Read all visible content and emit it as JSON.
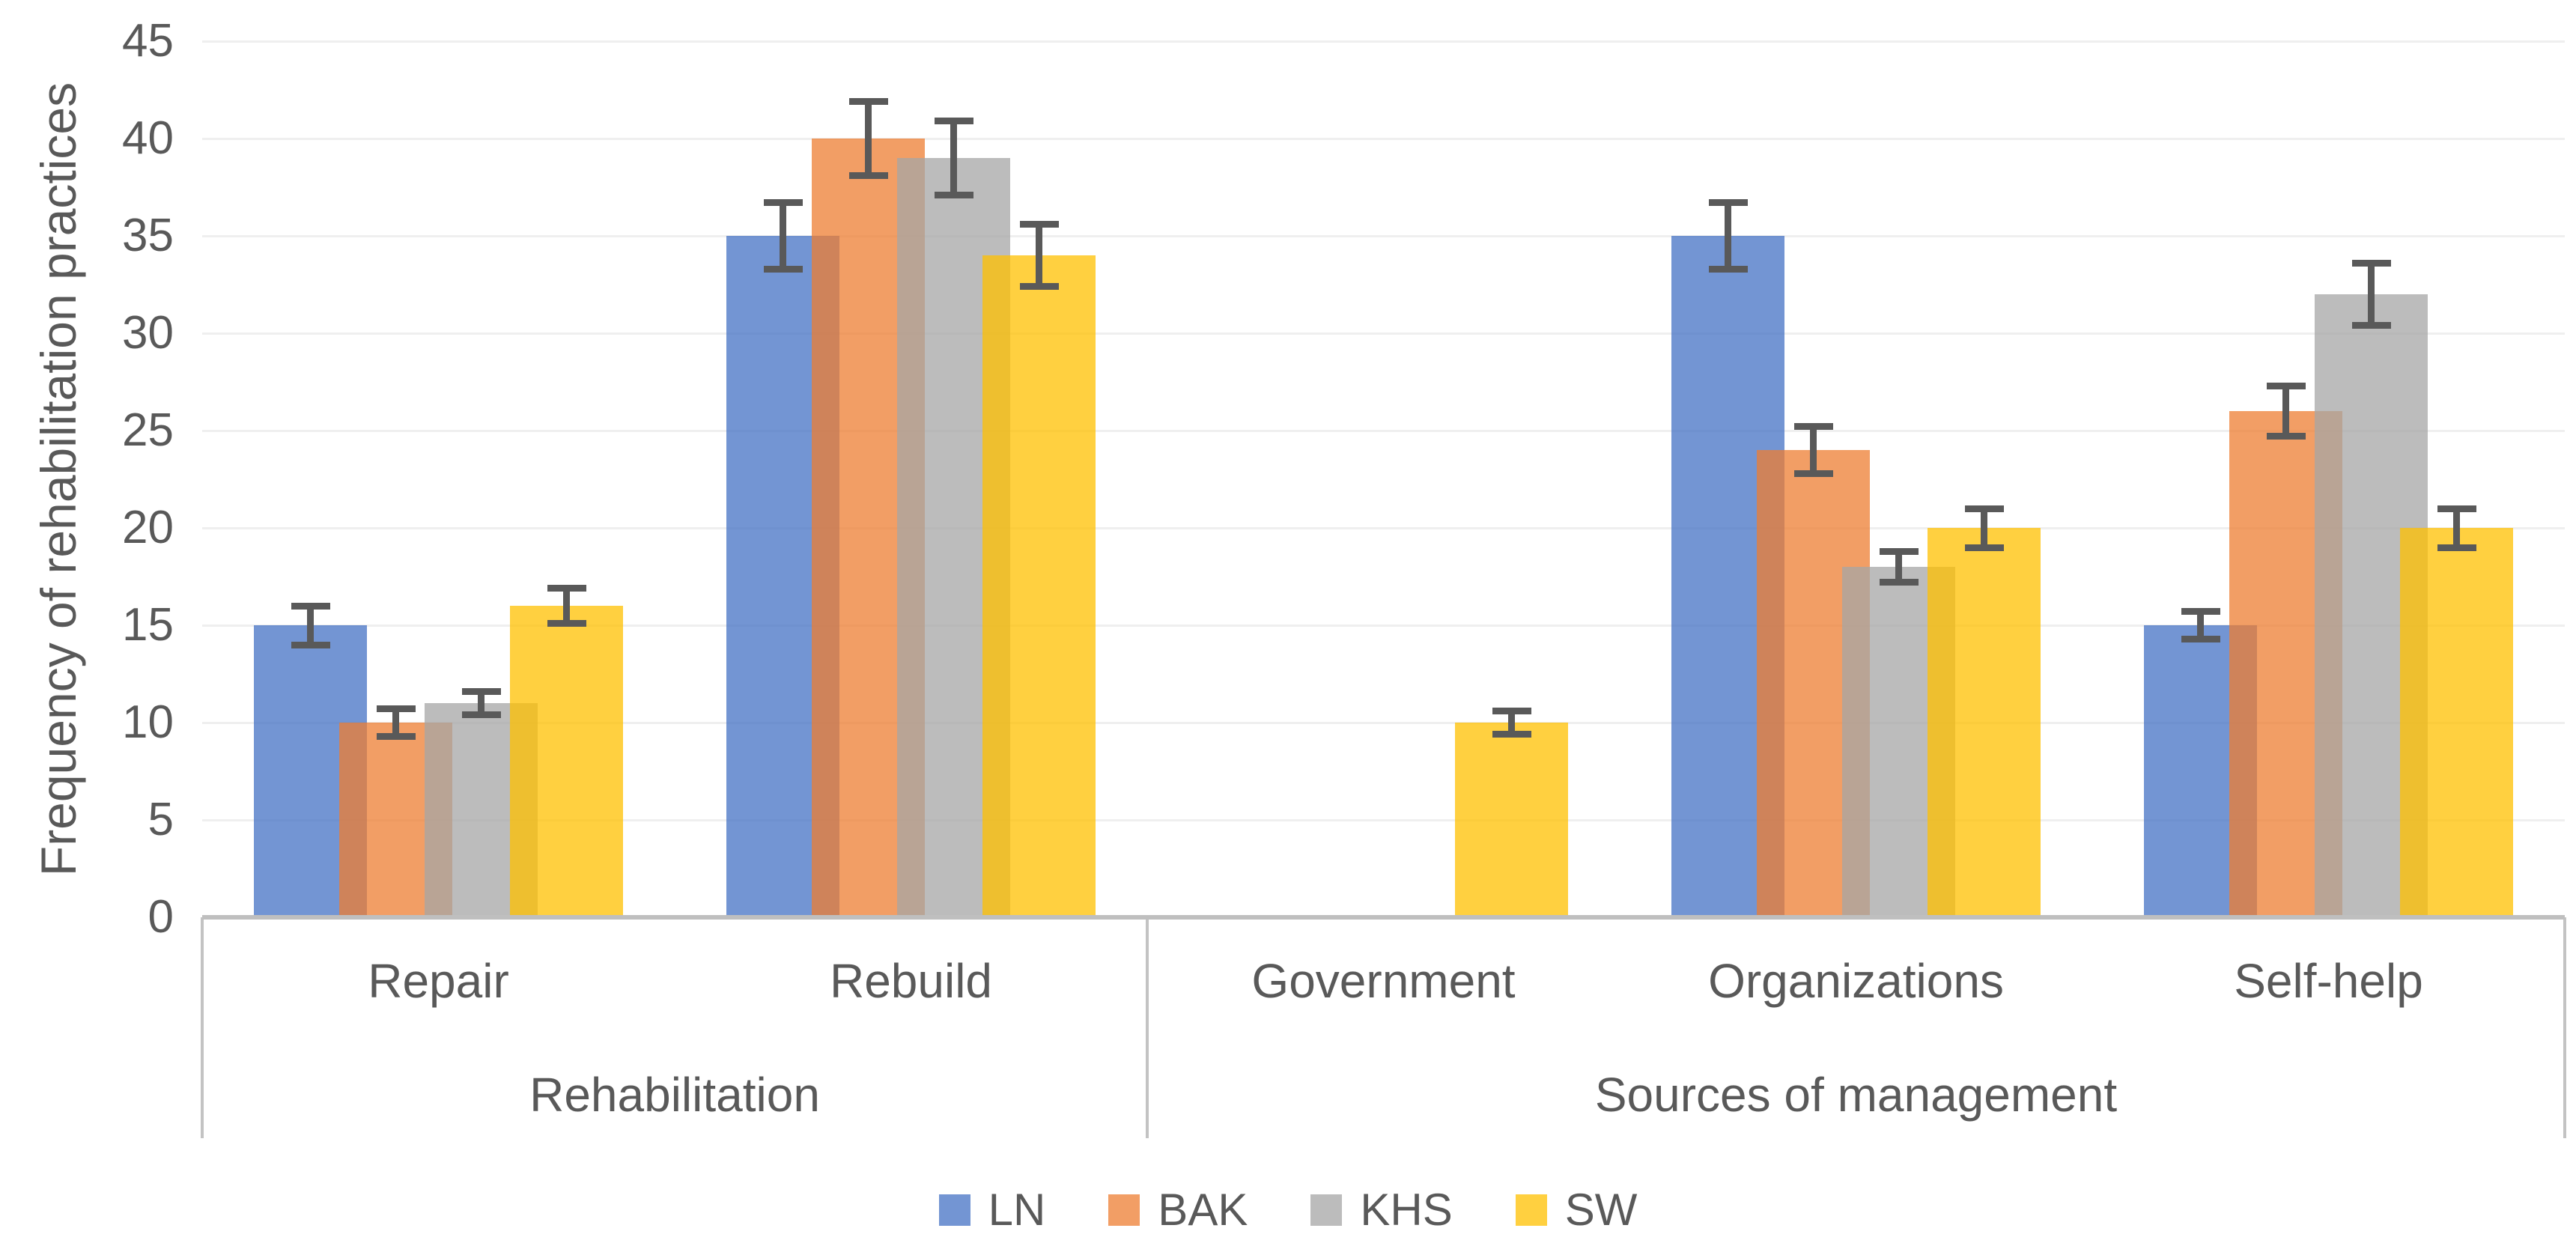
{
  "chart_data": {
    "type": "bar",
    "title": "",
    "ylabel": "Frequency of rehabilitation practices",
    "xlabel": "",
    "ylim": [
      0,
      45
    ],
    "ytick_step": 5,
    "grid": true,
    "legend_position": "bottom",
    "bar_opacity": 0.75,
    "error_bar_color": "#595959",
    "axis_line_color": "#BFBFBF",
    "gridline_color": "#EFEFEF",
    "text_color": "#595959",
    "categories": [
      "Repair",
      "Rebuild",
      "Government",
      "Organizations",
      "Self-help"
    ],
    "category_groups": [
      {
        "label": "Rehabilitation",
        "categories": [
          "Repair",
          "Rebuild"
        ]
      },
      {
        "label": "Sources of management",
        "categories": [
          "Government",
          "Organizations",
          "Self-help"
        ]
      }
    ],
    "series": [
      {
        "name": "LN",
        "color": "#4472C4",
        "values": [
          15,
          35,
          0,
          35,
          15
        ],
        "errors": [
          1.0,
          1.7,
          0,
          1.7,
          0.7
        ]
      },
      {
        "name": "BAK",
        "color": "#ED7D31",
        "values": [
          10,
          40,
          0,
          24,
          26
        ],
        "errors": [
          0.7,
          1.9,
          0,
          1.2,
          1.3
        ]
      },
      {
        "name": "KHS",
        "color": "#A5A5A5",
        "values": [
          11,
          39,
          0,
          18,
          32
        ],
        "errors": [
          0.6,
          1.9,
          0,
          0.8,
          1.6
        ]
      },
      {
        "name": "SW",
        "color": "#FFC000",
        "values": [
          16,
          34,
          10,
          20,
          20
        ],
        "errors": [
          0.9,
          1.6,
          0.6,
          1.0,
          1.0
        ]
      }
    ]
  }
}
